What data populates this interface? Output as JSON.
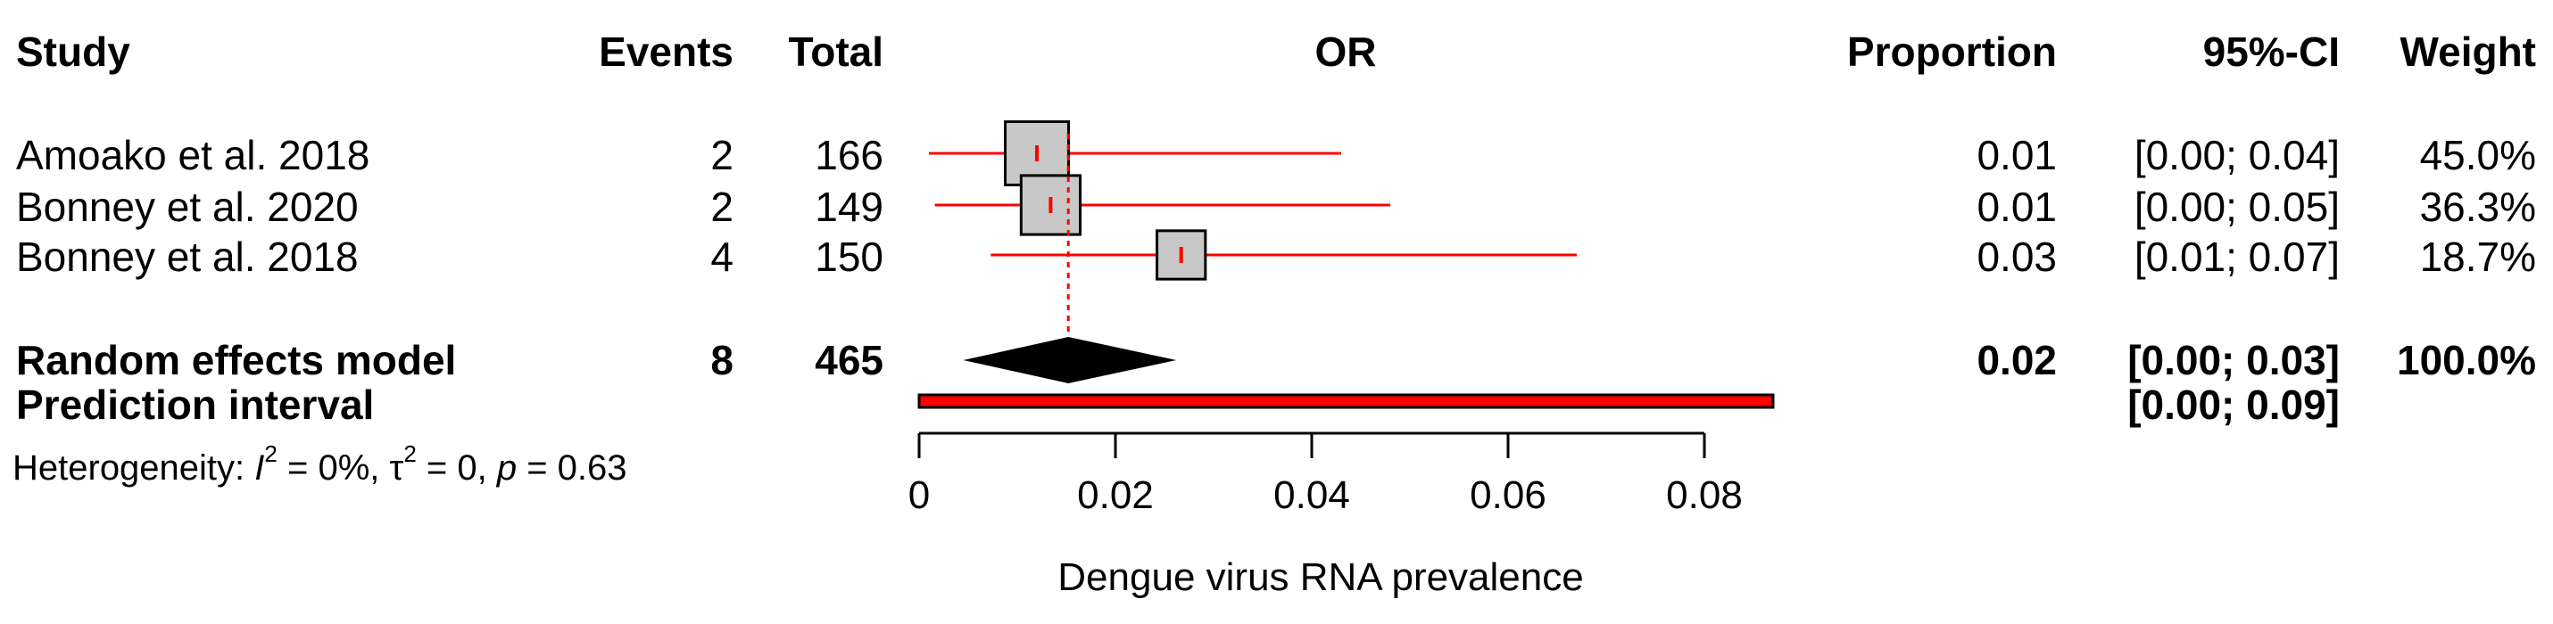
{
  "chart_data": {
    "type": "forest",
    "columns": {
      "study": "Study",
      "events": "Events",
      "total": "Total",
      "plot": "OR",
      "proportion": "Proportion",
      "ci": "95%-CI",
      "weight": "Weight"
    },
    "studies": [
      {
        "name": "Amoako et al. 2018",
        "events": "2",
        "total": "166",
        "proportion": 0.012,
        "lower": 0.001,
        "upper": 0.043,
        "proportion_text": "0.01",
        "ci_text": "[0.00; 0.04]",
        "weight_text": "45.0%",
        "weight": 45.0
      },
      {
        "name": "Bonney et al. 2020",
        "events": "2",
        "total": "149",
        "proportion": 0.0134,
        "lower": 0.0016,
        "upper": 0.048,
        "proportion_text": "0.01",
        "ci_text": "[0.00; 0.05]",
        "weight_text": "36.3%",
        "weight": 36.3
      },
      {
        "name": "Bonney et al. 2018",
        "events": "4",
        "total": "150",
        "proportion": 0.0267,
        "lower": 0.0073,
        "upper": 0.067,
        "proportion_text": "0.03",
        "ci_text": "[0.01; 0.07]",
        "weight_text": "18.7%",
        "weight": 18.7
      }
    ],
    "random_effects": {
      "label": "Random effects model",
      "events": "8",
      "total": "465",
      "estimate": 0.0152,
      "lower": 0.0045,
      "upper": 0.0262,
      "proportion_text": "0.02",
      "ci_text": "[0.00; 0.03]",
      "weight_text": "100.0%"
    },
    "prediction_interval": {
      "label": "Prediction interval",
      "lower": 0.0,
      "upper": 0.087,
      "ci_text": "[0.00; 0.09]"
    },
    "heterogeneity": {
      "prefix": "Heterogeneity: ",
      "i2_symbol": "I",
      "i2_text": " = 0%, ",
      "tau_symbol": "τ",
      "tau_text": " = 0, ",
      "p_symbol": "p",
      "p_text": " = 0.63"
    },
    "xaxis": {
      "label": "Dengue virus RNA prevalence",
      "range": [
        0,
        0.08
      ],
      "ticks": [
        0,
        0.02,
        0.04,
        0.06,
        0.08
      ],
      "tick_labels": [
        "0",
        "0.02",
        "0.04",
        "0.06",
        "0.08"
      ]
    },
    "colors": {
      "ci_line": "#ff0000",
      "box_fill": "#c8c8c8",
      "box_stroke": "#000000",
      "diamond": "#000000",
      "prediction_fill": "#ff0000"
    }
  }
}
